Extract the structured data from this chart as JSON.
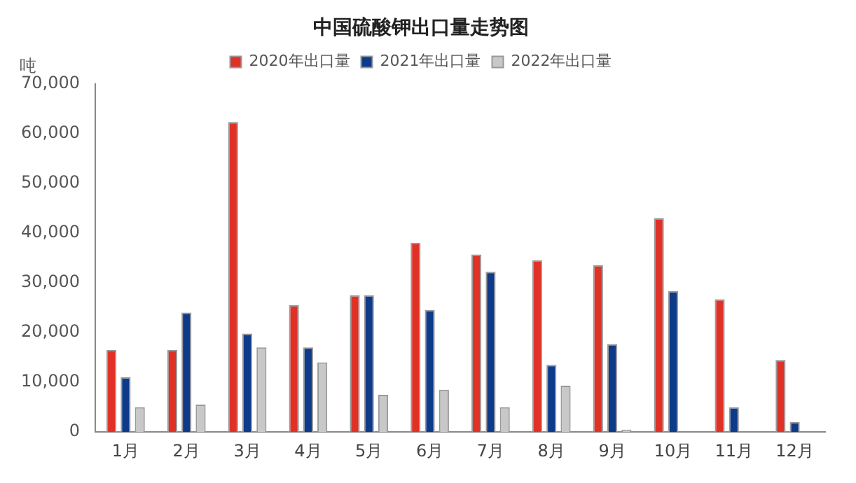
{
  "chart_data": {
    "type": "bar",
    "title": "中国硫酸钾出口量走势图",
    "ylabel": "吨",
    "categories": [
      "1月",
      "2月",
      "3月",
      "4月",
      "5月",
      "6月",
      "7月",
      "8月",
      "9月",
      "10月",
      "11月",
      "12月"
    ],
    "series": [
      {
        "name": "2020年出口量",
        "color": "#e03127",
        "values": [
          16500,
          16500,
          62300,
          25500,
          27500,
          38000,
          35700,
          34500,
          33500,
          43000,
          26700,
          14500
        ]
      },
      {
        "name": "2021年出口量",
        "color": "#0e3a8a",
        "values": [
          11000,
          24000,
          19800,
          17000,
          27500,
          24500,
          32200,
          13500,
          17700,
          28300,
          5000,
          2000
        ]
      },
      {
        "name": "2022年出口量",
        "color": "#c8c8c8",
        "values": [
          5000,
          5500,
          17000,
          14000,
          7500,
          8500,
          5000,
          9300,
          500,
          null,
          null,
          null
        ]
      }
    ],
    "ylim": [
      0,
      70000
    ],
    "yticks": [
      {
        "value": 0,
        "label": "0"
      },
      {
        "value": 10000,
        "label": "10,000"
      },
      {
        "value": 20000,
        "label": "20,000"
      },
      {
        "value": 30000,
        "label": "30,000"
      },
      {
        "value": 40000,
        "label": "40,000"
      },
      {
        "value": 50000,
        "label": "50,000"
      },
      {
        "value": 60000,
        "label": "60,000"
      },
      {
        "value": 70000,
        "label": "70,000"
      }
    ],
    "grid": false,
    "legend": "top"
  }
}
